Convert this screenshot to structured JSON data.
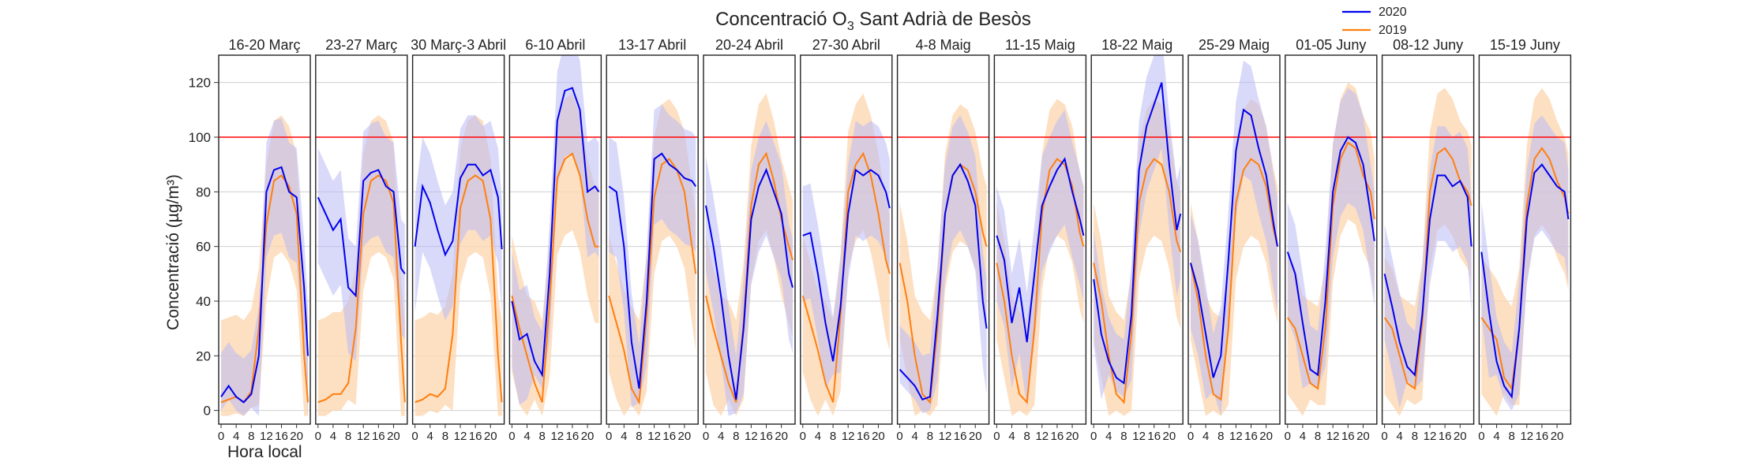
{
  "chart_data": {
    "type": "line",
    "title": "Concentració O3 Sant Adrià de Besòs",
    "title_main": "Concentració O",
    "title_sub": "3",
    "title_tail": " Sant Adrià de Besòs",
    "ylabel": "Concentració (µg/m³)",
    "xlabel": "Hora local",
    "ylim": [
      -5,
      130
    ],
    "xlim": [
      0,
      23
    ],
    "y_ticks": [
      0,
      20,
      40,
      60,
      80,
      100,
      120
    ],
    "x_ticks": [
      0,
      4,
      8,
      12,
      16,
      20
    ],
    "threshold": 100,
    "grid": true,
    "legend_position": "top-right",
    "colors": {
      "s2020": "#0000ee",
      "s2019": "#ff7f0e",
      "band2020": "#b9b9f5",
      "band2019": "#fdd7b3",
      "threshold": "#ff0000"
    },
    "legend": [
      {
        "name": "2020",
        "color": "#0000ee"
      },
      {
        "name": "2019",
        "color": "#ff7f0e"
      }
    ],
    "hours": [
      0,
      2,
      4,
      6,
      8,
      10,
      12,
      14,
      16,
      18,
      20,
      22,
      23
    ],
    "panels": [
      {
        "title": "16-20 Març",
        "s2020": [
          5,
          9,
          5,
          3,
          6,
          20,
          80,
          88,
          89,
          80,
          78,
          45,
          20
        ],
        "s2019": [
          3,
          4,
          5,
          3,
          7,
          30,
          68,
          84,
          86,
          82,
          72,
          20,
          3
        ]
      },
      {
        "title": "23-27 Març",
        "s2020": [
          78,
          72,
          66,
          70,
          45,
          42,
          84,
          87,
          88,
          82,
          80,
          52,
          50
        ],
        "s2019": [
          3,
          4,
          6,
          6,
          10,
          30,
          72,
          84,
          86,
          84,
          76,
          25,
          3
        ]
      },
      {
        "title": "30 Març-3 Abril",
        "s2020": [
          60,
          82,
          76,
          66,
          57,
          62,
          85,
          90,
          90,
          86,
          88,
          78,
          59
        ],
        "s2019": [
          3,
          4,
          6,
          5,
          8,
          28,
          74,
          84,
          86,
          84,
          70,
          20,
          3
        ]
      },
      {
        "title": "6-10 Abril",
        "s2020": [
          40,
          26,
          28,
          18,
          13,
          50,
          106,
          117,
          118,
          110,
          80,
          82,
          80
        ],
        "s2019": [
          42,
          30,
          20,
          10,
          3,
          40,
          85,
          92,
          94,
          86,
          70,
          60,
          60
        ]
      },
      {
        "title": "13-17 Abril",
        "s2020": [
          82,
          80,
          60,
          25,
          8,
          40,
          92,
          94,
          90,
          88,
          85,
          84,
          82
        ],
        "s2019": [
          42,
          32,
          22,
          8,
          3,
          35,
          78,
          90,
          92,
          88,
          80,
          60,
          50
        ]
      },
      {
        "title": "20-24 Abril",
        "s2020": [
          75,
          60,
          42,
          20,
          4,
          30,
          70,
          82,
          88,
          80,
          72,
          50,
          45
        ],
        "s2019": [
          42,
          30,
          20,
          10,
          3,
          32,
          75,
          90,
          94,
          84,
          70,
          60,
          55
        ]
      },
      {
        "title": "27-30 Abril",
        "s2020": [
          64,
          65,
          50,
          32,
          18,
          38,
          72,
          88,
          86,
          88,
          86,
          80,
          74
        ],
        "s2019": [
          42,
          32,
          22,
          10,
          3,
          35,
          80,
          90,
          94,
          86,
          72,
          55,
          50
        ]
      },
      {
        "title": "4-8 Maig",
        "s2020": [
          15,
          12,
          9,
          4,
          5,
          35,
          72,
          86,
          90,
          84,
          75,
          40,
          30
        ],
        "s2019": [
          54,
          40,
          20,
          6,
          3,
          30,
          72,
          86,
          90,
          88,
          80,
          65,
          60
        ]
      },
      {
        "title": "11-15 Maig",
        "s2020": [
          64,
          55,
          32,
          45,
          25,
          50,
          75,
          82,
          88,
          92,
          80,
          70,
          64
        ],
        "s2019": [
          54,
          40,
          20,
          6,
          3,
          30,
          72,
          88,
          92,
          90,
          82,
          65,
          60
        ]
      },
      {
        "title": "18-22 Maig",
        "s2020": [
          48,
          28,
          18,
          12,
          10,
          35,
          88,
          104,
          112,
          120,
          90,
          66,
          72
        ],
        "s2019": [
          54,
          40,
          20,
          6,
          3,
          28,
          76,
          88,
          92,
          90,
          80,
          62,
          58
        ]
      },
      {
        "title": "25-29 Maig",
        "s2020": [
          54,
          44,
          28,
          12,
          20,
          55,
          95,
          110,
          108,
          96,
          86,
          68,
          60
        ],
        "s2019": [
          54,
          40,
          20,
          6,
          4,
          30,
          76,
          88,
          92,
          90,
          82,
          66,
          60
        ]
      },
      {
        "title": "01-05 Juny",
        "s2020": [
          58,
          50,
          32,
          15,
          13,
          40,
          80,
          95,
          100,
          98,
          90,
          72,
          62
        ],
        "s2019": [
          34,
          30,
          20,
          10,
          8,
          30,
          75,
          92,
          98,
          96,
          86,
          80,
          70
        ]
      },
      {
        "title": "08-12 Juny",
        "s2020": [
          50,
          38,
          25,
          16,
          13,
          35,
          70,
          86,
          86,
          82,
          84,
          78,
          60
        ],
        "s2019": [
          34,
          30,
          20,
          10,
          8,
          32,
          80,
          94,
          96,
          92,
          84,
          80,
          75
        ]
      },
      {
        "title": "15-19 Juny",
        "s2020": [
          58,
          36,
          18,
          9,
          5,
          30,
          70,
          87,
          90,
          86,
          82,
          80,
          70
        ],
        "s2019": [
          34,
          30,
          26,
          12,
          8,
          30,
          75,
          92,
          96,
          92,
          84,
          78,
          72
        ]
      }
    ]
  }
}
